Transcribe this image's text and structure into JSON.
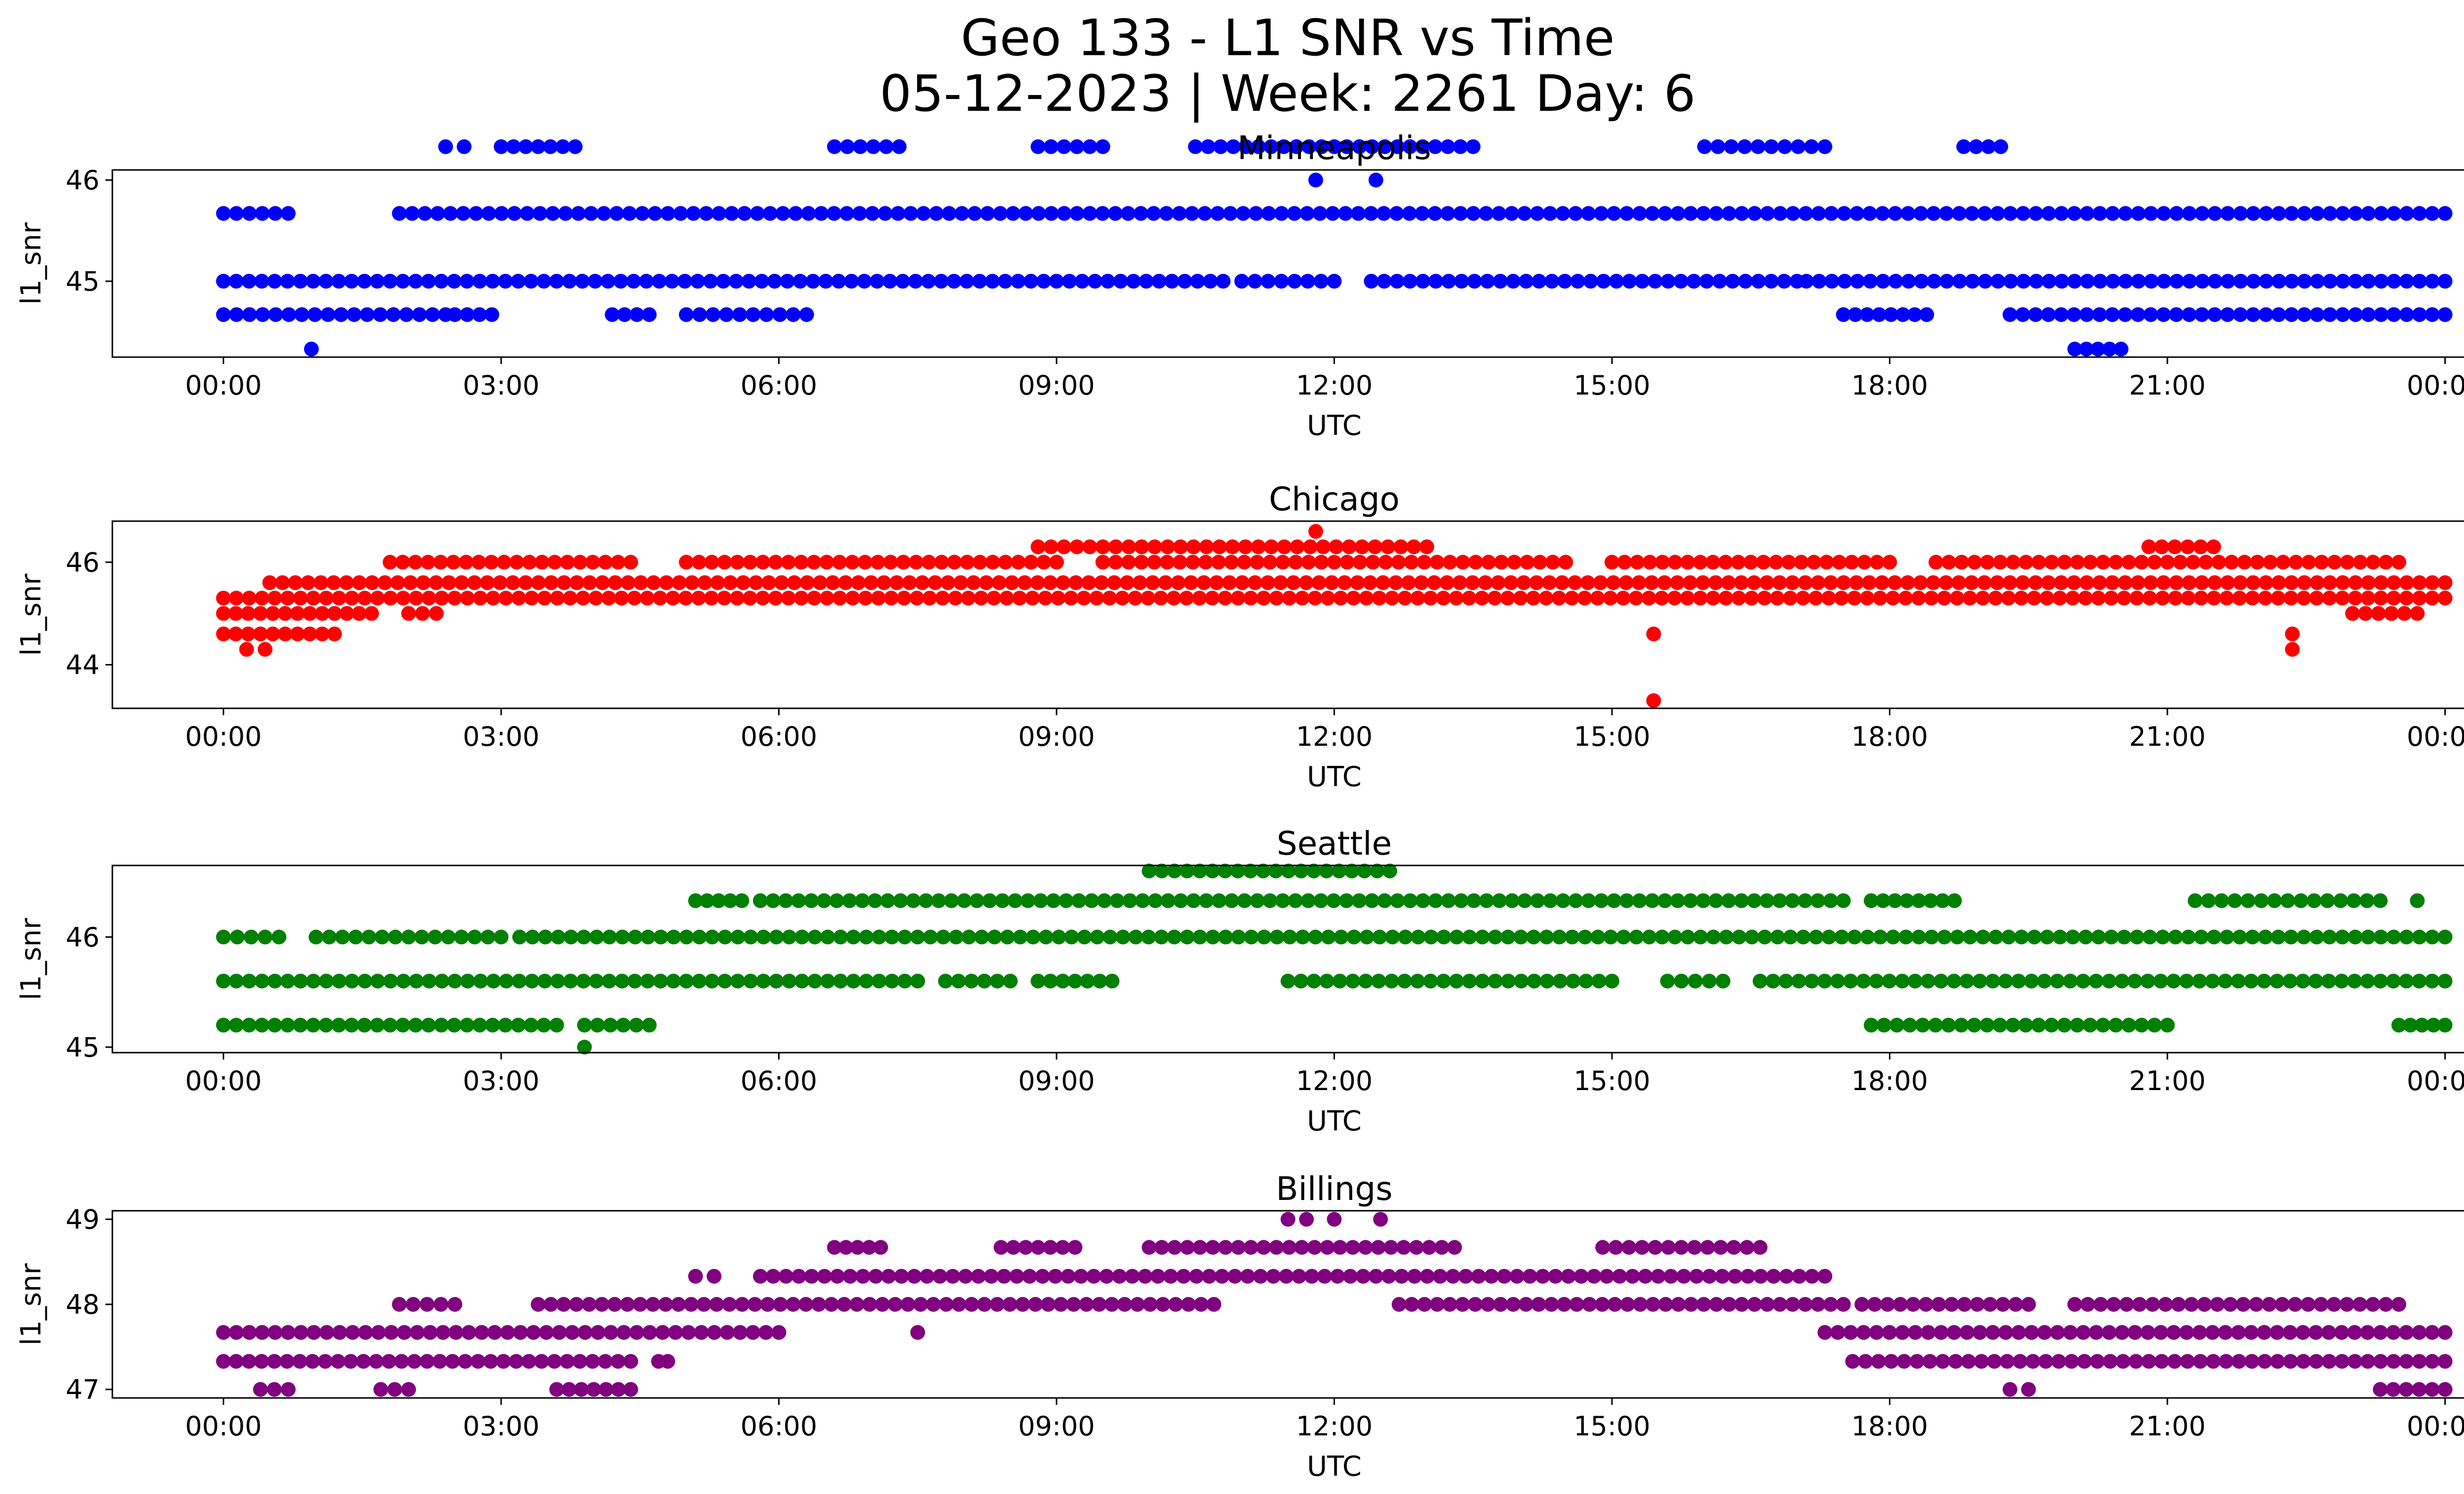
{
  "figure": {
    "title_line1": "Geo 133 - L1 SNR vs Time",
    "title_line2": "05-12-2023 | Week: 2261 Day: 6"
  },
  "chart_data": [
    {
      "type": "scatter",
      "title": "Minneapolis",
      "xlabel": "UTC",
      "ylabel": "l1_snr",
      "color": "#0000ff",
      "x_ticks": [
        "00:00",
        "03:00",
        "06:00",
        "09:00",
        "12:00",
        "15:00",
        "18:00",
        "21:00",
        "00:00"
      ],
      "x_range_hours": [
        -1.2,
        25.2
      ],
      "y_ticks": [
        45,
        46
      ],
      "ylim": [
        44.25,
        46.1
      ],
      "levels": [
        {
          "y": 45.67,
          "ranges": [
            [
              0.0,
              0.7
            ],
            [
              1.9,
              24.0
            ]
          ]
        },
        {
          "y": 45.0,
          "ranges": [
            [
              0.0,
              10.8
            ],
            [
              11.0,
              12.0
            ],
            [
              12.4,
              17.0
            ],
            [
              17.1,
              24.0
            ]
          ]
        },
        {
          "y": 44.67,
          "ranges": [
            [
              0.0,
              2.4
            ],
            [
              2.5,
              2.9
            ],
            [
              4.2,
              4.6
            ],
            [
              5.0,
              6.3
            ],
            [
              17.5,
              18.4
            ],
            [
              19.3,
              24.0
            ]
          ]
        },
        {
          "y": 46.0,
          "ranges": [
            [
              11.8,
              11.8
            ],
            [
              12.45,
              12.45
            ]
          ]
        },
        {
          "y": 44.33,
          "ranges": [
            [
              0.95,
              0.95
            ],
            [
              20.0,
              20.5
            ]
          ]
        },
        {
          "y": 46.33,
          "ranges": [
            [
              2.4,
              2.6
            ],
            [
              3.0,
              3.8
            ],
            [
              6.6,
              7.3
            ],
            [
              8.8,
              9.5
            ],
            [
              10.5,
              13.5
            ],
            [
              16.0,
              17.3
            ],
            [
              18.8,
              19.2
            ]
          ]
        }
      ]
    },
    {
      "type": "scatter",
      "title": "Chicago",
      "xlabel": "UTC",
      "ylabel": "l1_snr",
      "color": "#ff0000",
      "x_ticks": [
        "00:00",
        "03:00",
        "06:00",
        "09:00",
        "12:00",
        "15:00",
        "18:00",
        "21:00",
        "00:00"
      ],
      "x_range_hours": [
        -1.2,
        25.2
      ],
      "y_ticks": [
        44,
        46
      ],
      "ylim": [
        43.15,
        46.8
      ],
      "levels": [
        {
          "y": 45.6,
          "ranges": [
            [
              0.5,
              24.0
            ]
          ]
        },
        {
          "y": 45.3,
          "ranges": [
            [
              0.0,
              24.0
            ]
          ]
        },
        {
          "y": 45.0,
          "ranges": [
            [
              0.0,
              1.6
            ],
            [
              2.0,
              2.3
            ],
            [
              23.0,
              23.7
            ]
          ]
        },
        {
          "y": 44.6,
          "ranges": [
            [
              0.0,
              1.2
            ],
            [
              15.45,
              15.45
            ],
            [
              22.35,
              22.35
            ]
          ]
        },
        {
          "y": 44.3,
          "ranges": [
            [
              0.25,
              0.45
            ],
            [
              22.35,
              22.35
            ]
          ]
        },
        {
          "y": 46.0,
          "ranges": [
            [
              1.8,
              4.4
            ],
            [
              5.0,
              9.0
            ],
            [
              9.5,
              14.5
            ],
            [
              15.0,
              18.0
            ],
            [
              18.5,
              23.5
            ]
          ]
        },
        {
          "y": 46.3,
          "ranges": [
            [
              8.8,
              13.0
            ],
            [
              20.8,
              21.5
            ]
          ]
        },
        {
          "y": 46.6,
          "ranges": [
            [
              11.8,
              11.8
            ]
          ]
        },
        {
          "y": 43.3,
          "ranges": [
            [
              15.45,
              15.45
            ]
          ]
        }
      ]
    },
    {
      "type": "scatter",
      "title": "Seattle",
      "xlabel": "UTC",
      "ylabel": "l1_snr",
      "color": "#008000",
      "x_ticks": [
        "00:00",
        "03:00",
        "06:00",
        "09:00",
        "12:00",
        "15:00",
        "18:00",
        "21:00",
        "00:00"
      ],
      "x_range_hours": [
        -1.2,
        25.2
      ],
      "y_ticks": [
        45,
        46
      ],
      "ylim": [
        44.95,
        46.65
      ],
      "levels": [
        {
          "y": 45.6,
          "ranges": [
            [
              0.0,
              7.5
            ],
            [
              7.8,
              8.5
            ],
            [
              8.8,
              9.6
            ],
            [
              11.5,
              15.0
            ],
            [
              15.6,
              16.2
            ],
            [
              16.6,
              24.0
            ]
          ]
        },
        {
          "y": 45.2,
          "ranges": [
            [
              0.0,
              3.6
            ],
            [
              3.9,
              4.6
            ],
            [
              17.8,
              21.0
            ],
            [
              23.5,
              24.0
            ]
          ]
        },
        {
          "y": 46.0,
          "ranges": [
            [
              0.0,
              0.6
            ],
            [
              1.0,
              3.0
            ],
            [
              3.2,
              24.0
            ]
          ]
        },
        {
          "y": 46.33,
          "ranges": [
            [
              5.1,
              5.6
            ],
            [
              5.8,
              17.5
            ],
            [
              17.8,
              18.7
            ],
            [
              21.3,
              23.3
            ],
            [
              23.7,
              23.7
            ]
          ]
        },
        {
          "y": 46.6,
          "ranges": [
            [
              10.0,
              12.6
            ]
          ]
        },
        {
          "y": 45.0,
          "ranges": [
            [
              3.9,
              3.9
            ]
          ]
        }
      ]
    },
    {
      "type": "scatter",
      "title": "Billings",
      "xlabel": "UTC",
      "ylabel": "l1_snr",
      "color": "#800080",
      "x_ticks": [
        "00:00",
        "03:00",
        "06:00",
        "09:00",
        "12:00",
        "15:00",
        "18:00",
        "21:00",
        "00:00"
      ],
      "x_range_hours": [
        -1.2,
        25.2
      ],
      "y_ticks": [
        47,
        48,
        49
      ],
      "ylim": [
        46.9,
        49.1
      ],
      "levels": [
        {
          "y": 47.33,
          "ranges": [
            [
              0.0,
              4.4
            ],
            [
              4.7,
              4.8
            ],
            [
              17.6,
              24.0
            ]
          ]
        },
        {
          "y": 47.67,
          "ranges": [
            [
              0.0,
              6.0
            ],
            [
              17.3,
              24.0
            ]
          ]
        },
        {
          "y": 48.0,
          "ranges": [
            [
              1.9,
              2.5
            ],
            [
              3.4,
              10.7
            ],
            [
              12.7,
              17.5
            ],
            [
              17.7,
              19.5
            ],
            [
              20.0,
              23.5
            ]
          ]
        },
        {
          "y": 48.33,
          "ranges": [
            [
              5.1,
              5.3
            ],
            [
              5.8,
              17.3
            ]
          ]
        },
        {
          "y": 48.67,
          "ranges": [
            [
              6.6,
              7.1
            ],
            [
              8.4,
              9.2
            ],
            [
              10.0,
              13.3
            ],
            [
              14.9,
              16.6
            ]
          ]
        },
        {
          "y": 49.0,
          "ranges": [
            [
              11.5,
              11.7
            ],
            [
              12.0,
              12.0
            ],
            [
              12.5,
              12.5
            ]
          ]
        },
        {
          "y": 47.0,
          "ranges": [
            [
              0.4,
              0.7
            ],
            [
              1.7,
              2.0
            ],
            [
              3.6,
              4.4
            ],
            [
              19.3,
              19.5
            ],
            [
              23.3,
              24.0
            ]
          ]
        },
        {
          "y": 47.67,
          "ranges": [
            [
              7.5,
              7.5
            ]
          ]
        }
      ]
    }
  ]
}
